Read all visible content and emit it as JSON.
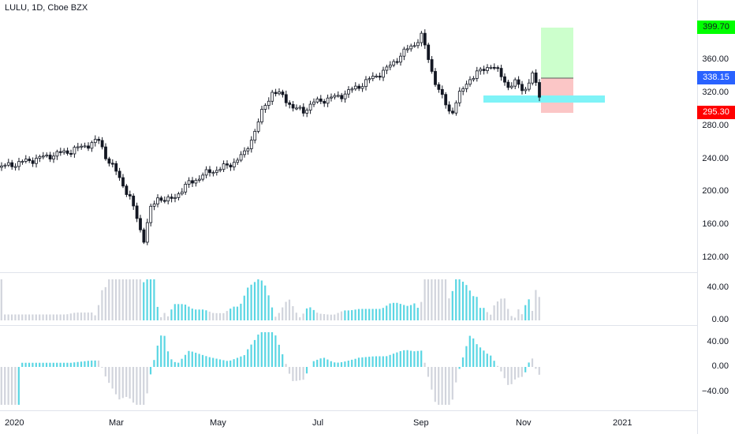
{
  "header": {
    "title": "LULU, 1D, Cboe BZX"
  },
  "price_axis": {
    "ticks": [
      "360.00",
      "320.00",
      "280.00",
      "240.00",
      "200.00",
      "160.00",
      "120.00"
    ]
  },
  "indicator1_axis": {
    "ticks": [
      "40.00",
      "0.00"
    ]
  },
  "indicator2_axis": {
    "ticks": [
      "40.00",
      "0.00",
      "−40.00"
    ]
  },
  "time_axis": {
    "labels": [
      "2020",
      "Mar",
      "May",
      "Jul",
      "Sep",
      "Nov",
      "2021"
    ]
  },
  "price_badges": {
    "target": {
      "value": "399.70",
      "color": "#00ff00",
      "text_color": "#131722"
    },
    "current": {
      "value": "338.15",
      "color": "#2962ff",
      "text_color": "#ffffff"
    },
    "stop": {
      "value": "295.30",
      "color": "#ff0000",
      "text_color": "#ffffff"
    }
  },
  "colors": {
    "up": "#ffffff",
    "down": "#000000",
    "hist_cyan": "#5ad6e3",
    "hist_grey": "#d1d4dc",
    "profit_zone": "#ccffcc",
    "loss_zone": "#fbc6c6",
    "support_band": "#7ff3f7"
  },
  "chart_data": {
    "type": "candlestick",
    "price_series": {
      "name": "LULU",
      "x": [
        "2020-01",
        "2020-02",
        "2020-03",
        "2020-04",
        "2020-05",
        "2020-06",
        "2020-07",
        "2020-08",
        "2020-09",
        "2020-10",
        "2020-11"
      ],
      "y": [
        230,
        260,
        140,
        200,
        230,
        320,
        310,
        385,
        290,
        340,
        338
      ],
      "ylim": [
        110,
        410
      ]
    },
    "position_tool": {
      "target": 399.7,
      "entry": 338.15,
      "stop": 295.3
    },
    "indicator1": {
      "ylim": [
        0,
        55
      ]
    },
    "indicator2": {
      "ylim": [
        -60,
        60
      ]
    }
  }
}
